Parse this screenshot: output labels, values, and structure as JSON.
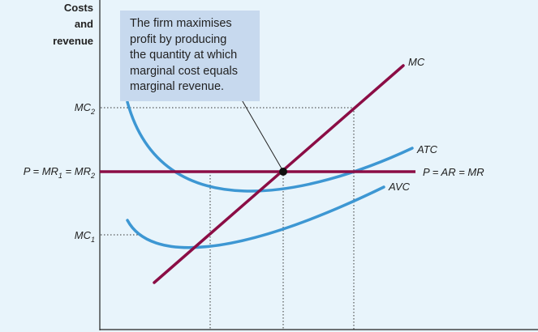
{
  "axis_title": [
    "Costs",
    "and",
    "revenue"
  ],
  "y_labels": {
    "mc2": {
      "base": "MC",
      "sub": "2"
    },
    "price": {
      "text": "P = MR",
      "sub1": "1",
      "mid": " = MR",
      "sub2": "2"
    },
    "mc1": {
      "base": "MC",
      "sub": "1"
    }
  },
  "curve_labels": {
    "mc": "MC",
    "atc": "ATC",
    "avc": "AVC",
    "demand": "P = AR = MR"
  },
  "annotation": {
    "lines": [
      "The firm maximises",
      "profit by producing",
      "the quantity at which",
      "marginal cost equals",
      "marginal revenue."
    ]
  },
  "colors": {
    "background": "#e8f4fb",
    "mc_line": "#8b0d45",
    "price_line": "#8b0d45",
    "cost_curves": "#3d97d3",
    "note_box": "#c7d9ee"
  }
}
